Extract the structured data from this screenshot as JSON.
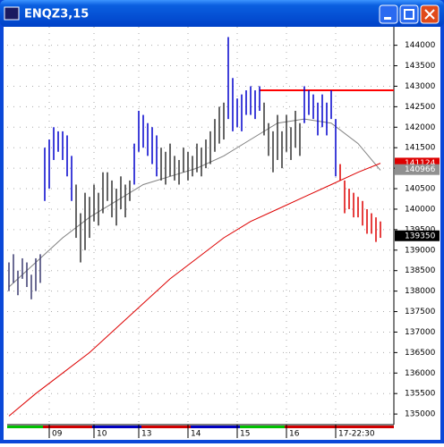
{
  "window": {
    "title": "ENQZ3,15"
  },
  "chart_data": {
    "type": "ohlc",
    "xlim": [
      -0.4,
      86
    ],
    "ylim": [
      134850,
      144450
    ],
    "yticks": [
      135000,
      135500,
      136000,
      136500,
      137000,
      137500,
      138000,
      138500,
      139000,
      139500,
      140000,
      140500,
      141000,
      141500,
      142000,
      142500,
      143000,
      143500,
      144000
    ],
    "xticks": [
      {
        "value": 9,
        "label": "09"
      },
      {
        "value": 19,
        "label": "10"
      },
      {
        "value": 29,
        "label": "13"
      },
      {
        "value": 40,
        "label": "14"
      },
      {
        "value": 51,
        "label": "15"
      },
      {
        "value": 62,
        "label": "16"
      },
      {
        "value": 73,
        "label": "17-22:30"
      }
    ],
    "grid": true,
    "lows": [
      138000,
      138200,
      137900,
      138300,
      138100,
      137800,
      138000,
      138200,
      140200,
      140500,
      141200,
      141400,
      141200,
      140800,
      140200,
      139300,
      138700,
      139000,
      139300,
      139700,
      139600,
      139900,
      140200,
      139800,
      139600,
      140000,
      139800,
      140200,
      140600,
      141400,
      141500,
      141300,
      141100,
      140800,
      140700,
      140600,
      140800,
      140700,
      140600,
      140900,
      140700,
      140800,
      140900,
      140800,
      141000,
      141100,
      141400,
      141600,
      141700,
      142200,
      141900,
      142000,
      141900,
      142300,
      142300,
      142200,
      142400,
      141800,
      141300,
      140900,
      141200,
      141000,
      141400,
      141200,
      141500,
      141300,
      142100,
      142300,
      142200,
      141800,
      142000,
      141800,
      142200,
      140800,
      140700,
      139900,
      140000,
      139800,
      139800,
      139600,
      139400,
      139400,
      139200,
      139300
    ],
    "highs": [
      138700,
      138900,
      138500,
      138800,
      138700,
      138400,
      138800,
      138900,
      141500,
      141700,
      142000,
      141900,
      141900,
      141800,
      141300,
      140600,
      139900,
      140400,
      140300,
      140600,
      140400,
      140900,
      140900,
      140700,
      140500,
      140800,
      140600,
      140700,
      141600,
      142400,
      142300,
      142100,
      142000,
      141800,
      141500,
      141400,
      141600,
      141300,
      141200,
      141500,
      141400,
      141300,
      141600,
      141500,
      141700,
      141900,
      142200,
      142500,
      142600,
      144200,
      143200,
      142700,
      142800,
      142900,
      143000,
      142900,
      143000,
      142600,
      142100,
      141900,
      142300,
      141900,
      142300,
      142000,
      142400,
      142100,
      143000,
      142900,
      142800,
      142600,
      142800,
      142600,
      142900,
      142200,
      141100,
      140700,
      140500,
      140400,
      140300,
      140200,
      140000,
      139900,
      139800,
      139700
    ],
    "colors": [
      "#3a3a70",
      "#3a3a70",
      "#3a3a70",
      "#3a3a70",
      "#3a3a70",
      "#3a3a70",
      "#3a3a70",
      "#3a3a70",
      "#0000cc",
      "#0000cc",
      "#0000cc",
      "#0000cc",
      "#0000cc",
      "#0000cc",
      "#0000cc",
      "#333333",
      "#333333",
      "#333333",
      "#333333",
      "#333333",
      "#333333",
      "#333333",
      "#333333",
      "#333333",
      "#333333",
      "#333333",
      "#333333",
      "#333333",
      "#0000cc",
      "#0000cc",
      "#0000cc",
      "#0000cc",
      "#0000cc",
      "#0000cc",
      "#333333",
      "#333333",
      "#333333",
      "#333333",
      "#333333",
      "#333333",
      "#333333",
      "#333333",
      "#333333",
      "#333333",
      "#333333",
      "#333333",
      "#333333",
      "#333333",
      "#333333",
      "#0000cc",
      "#0000cc",
      "#0000cc",
      "#0000cc",
      "#0000cc",
      "#0000cc",
      "#0000cc",
      "#0000cc",
      "#333333",
      "#333333",
      "#333333",
      "#333333",
      "#333333",
      "#333333",
      "#333333",
      "#333333",
      "#333333",
      "#0000cc",
      "#0000cc",
      "#0000cc",
      "#0000cc",
      "#0000cc",
      "#0000cc",
      "#0000cc",
      "#0000cc",
      "#dd0000",
      "#dd0000",
      "#dd0000",
      "#dd0000",
      "#dd0000",
      "#dd0000",
      "#dd0000",
      "#dd0000",
      "#dd0000",
      "#dd0000"
    ],
    "lines": [
      {
        "color": "#808080",
        "x": [
          0,
          6,
          12,
          18,
          24,
          30,
          36,
          42,
          48,
          54,
          60,
          66,
          72,
          78,
          83
        ],
        "values": [
          138100,
          138700,
          139300,
          139800,
          140200,
          140600,
          140800,
          141000,
          141300,
          141700,
          142100,
          142200,
          142100,
          141600,
          140950
        ]
      },
      {
        "color": "#dd0000",
        "x": [
          0,
          6,
          12,
          18,
          24,
          30,
          36,
          42,
          48,
          54,
          60,
          66,
          72,
          78,
          83
        ],
        "values": [
          134950,
          135500,
          136000,
          136500,
          137100,
          137700,
          138300,
          138800,
          139300,
          139700,
          140000,
          140300,
          140600,
          140900,
          141120
        ]
      }
    ],
    "level": {
      "value": 142900,
      "from": 56,
      "color": "#ff0000"
    },
    "price_labels": [
      {
        "value": 141124,
        "color": "#dd0000"
      },
      {
        "value": 140966,
        "color": "#909090"
      },
      {
        "value": 139350,
        "color": "#000000"
      }
    ]
  }
}
